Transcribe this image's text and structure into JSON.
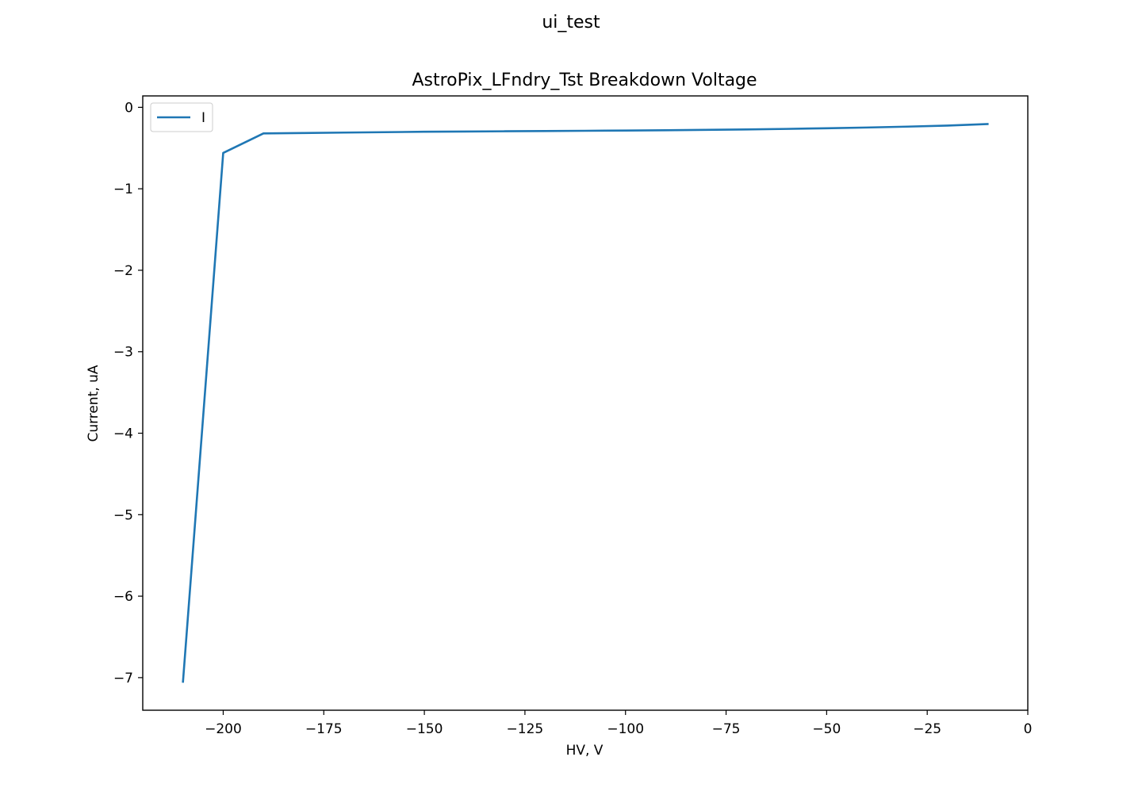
{
  "figure": {
    "suptitle": "ui_test"
  },
  "chart_data": {
    "type": "line",
    "title": "AstroPix_LFndry_Tst Breakdown Voltage",
    "xlabel": "HV, V",
    "ylabel": "Current, uA",
    "xlim": [
      -220,
      0
    ],
    "ylim": [
      -7.4,
      0.14
    ],
    "xticks": [
      -200,
      -175,
      -150,
      -125,
      -100,
      -75,
      -50,
      -25,
      0
    ],
    "xtick_labels": [
      "−200",
      "−175",
      "−150",
      "−125",
      "−100",
      "−75",
      "−50",
      "−25",
      "0"
    ],
    "yticks": [
      0,
      -1,
      -2,
      -3,
      -4,
      -5,
      -6,
      -7
    ],
    "ytick_labels": [
      "0",
      "−1",
      "−2",
      "−3",
      "−4",
      "−5",
      "−6",
      "−7"
    ],
    "grid": false,
    "legend_position": "upper-left",
    "series": [
      {
        "name": "I",
        "color": "#1f77b4",
        "x": [
          -210,
          -200,
          -190,
          -180,
          -170,
          -160,
          -150,
          -140,
          -130,
          -120,
          -110,
          -100,
          -90,
          -80,
          -70,
          -60,
          -50,
          -40,
          -30,
          -20,
          -10
        ],
        "y": [
          -7.05,
          -0.56,
          -0.32,
          -0.315,
          -0.31,
          -0.305,
          -0.3,
          -0.297,
          -0.294,
          -0.291,
          -0.288,
          -0.285,
          -0.281,
          -0.277,
          -0.272,
          -0.265,
          -0.257,
          -0.248,
          -0.237,
          -0.224,
          -0.205
        ]
      }
    ]
  }
}
